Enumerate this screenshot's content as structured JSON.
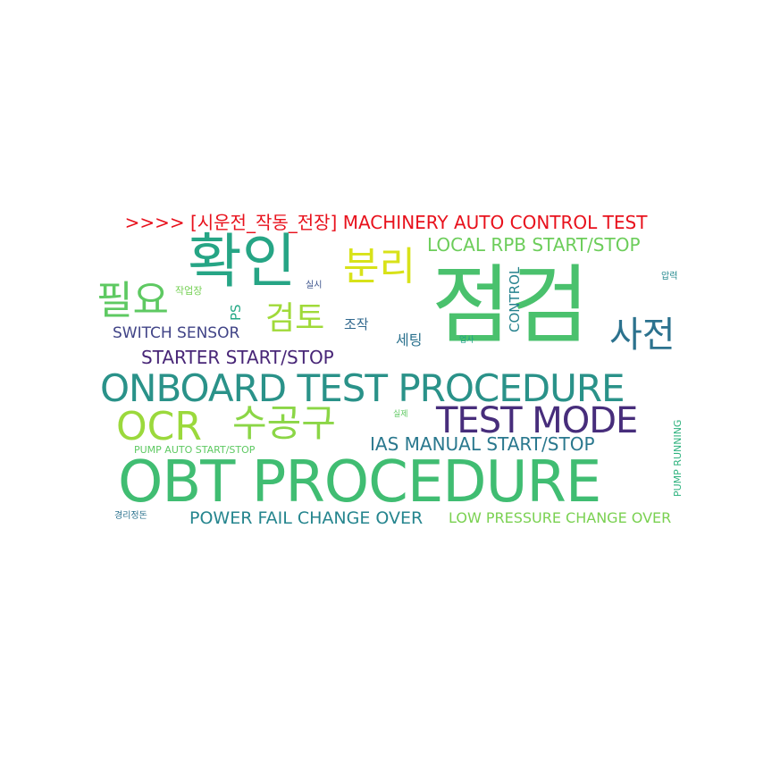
{
  "title": ">>>> [시운전_작동_전장] MACHINERY AUTO CONTROL TEST",
  "words": [
    {
      "text": "점검",
      "color": "#4ac16d"
    },
    {
      "text": "확인",
      "color": "#26a585"
    },
    {
      "text": "OBT PROCEDURE",
      "color": "#40bd72"
    },
    {
      "text": "ONBOARD TEST PROCEDURE",
      "color": "#2a9289"
    },
    {
      "text": "TEST MODE",
      "color": "#472d7b"
    },
    {
      "text": "OCR",
      "color": "#9bd93c"
    },
    {
      "text": "수공구",
      "color": "#8bd646"
    },
    {
      "text": "분리",
      "color": "#d8e219"
    },
    {
      "text": "필요",
      "color": "#5ec962"
    },
    {
      "text": "검토",
      "color": "#a0da39"
    },
    {
      "text": "사전",
      "color": "#2c728e"
    },
    {
      "text": "LOCAL RPB START/STOP",
      "color": "#6ccd5a"
    },
    {
      "text": "STARTER START/STOP",
      "color": "#482677"
    },
    {
      "text": "SWITCH SENSOR",
      "color": "#414487"
    },
    {
      "text": "IAS MANUAL START/STOP",
      "color": "#2a788e"
    },
    {
      "text": "POWER FAIL CHANGE OVER",
      "color": "#25858e"
    },
    {
      "text": "LOW PRESSURE CHANGE OVER",
      "color": "#7ad151"
    },
    {
      "text": "PUMP AUTO START/STOP",
      "color": "#5ec962"
    },
    {
      "text": "PUMP RUNNING",
      "color": "#2db27d"
    },
    {
      "text": "CONTROL",
      "color": "#26828e"
    },
    {
      "text": "PS",
      "color": "#22a884"
    },
    {
      "text": "세팅",
      "color": "#2c728e"
    },
    {
      "text": "조작",
      "color": "#31688e"
    },
    {
      "text": "작업장",
      "color": "#75d054"
    },
    {
      "text": "실시",
      "color": "#3b528b"
    },
    {
      "text": "압력",
      "color": "#23898e"
    },
    {
      "text": "업사",
      "color": "#1fa188"
    },
    {
      "text": "실제",
      "color": "#5ec962"
    },
    {
      "text": "경리정돈",
      "color": "#2c728e"
    }
  ]
}
